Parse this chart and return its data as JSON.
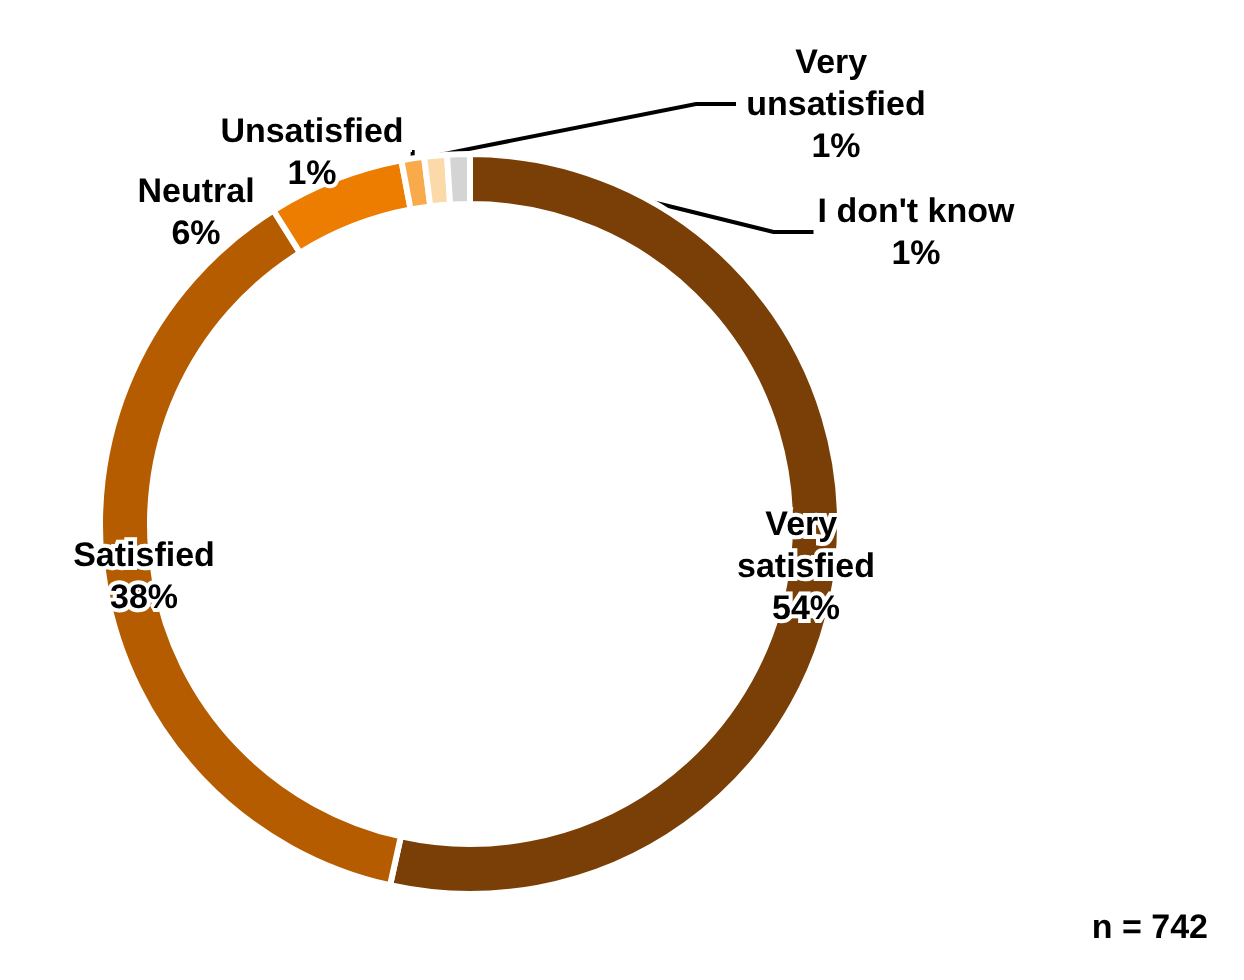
{
  "chart_data": {
    "type": "donut",
    "categories": [
      "Very satisfied",
      "Satisfied",
      "Neutral",
      "Unsatisfied",
      "Very unsatisfied",
      "I don't know"
    ],
    "values": [
      54,
      38,
      6,
      1,
      1,
      1
    ],
    "colors": [
      "#7a3f06",
      "#b65c00",
      "#ec7d00",
      "#f9aa4a",
      "#fcd9a8",
      "#d4d4d4"
    ],
    "legend": false,
    "value_labels": [
      "54%",
      "38%",
      "6%",
      "1%",
      "1%",
      "1%"
    ],
    "annotations": [
      "n = 742"
    ]
  }
}
